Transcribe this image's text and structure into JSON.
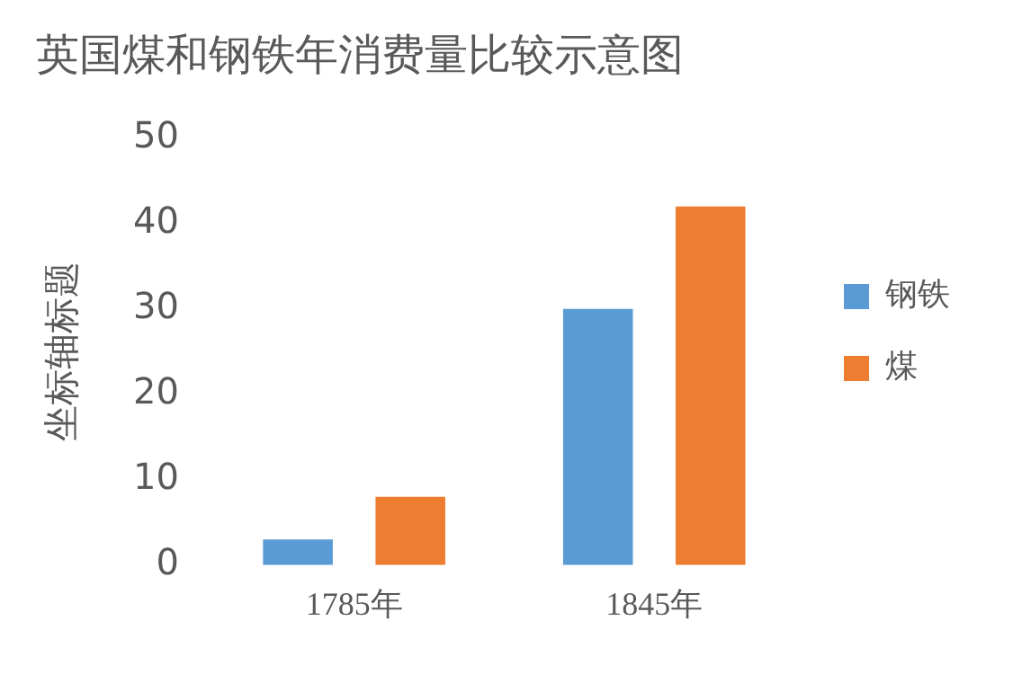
{
  "chart_data": {
    "type": "bar",
    "title": "英国煤和钢铁年消费量比较示意图",
    "ylabel": "坐标轴标题",
    "categories": [
      "1785年",
      "1845年"
    ],
    "series": [
      {
        "name": "钢铁",
        "color": "#5b9bd5",
        "values": [
          3,
          30
        ]
      },
      {
        "name": "煤",
        "color": "#ed7d31",
        "values": [
          8,
          42
        ]
      }
    ],
    "ylim": [
      0,
      50
    ],
    "yticks": [
      0,
      10,
      20,
      30,
      40,
      50
    ],
    "grid": false,
    "legend": "right"
  }
}
